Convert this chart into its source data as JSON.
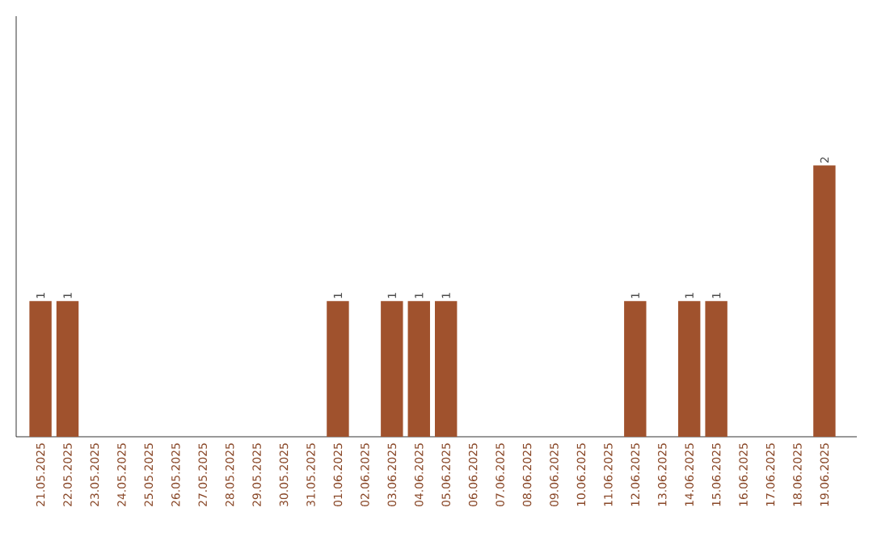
{
  "chart_data": {
    "type": "bar",
    "categories": [
      "21.05.2025",
      "22.05.2025",
      "23.05.2025",
      "24.05.2025",
      "25.05.2025",
      "26.05.2025",
      "27.05.2025",
      "28.05.2025",
      "29.05.2025",
      "30.05.2025",
      "31.05.2025",
      "01.06.2025",
      "02.06.2025",
      "03.06.2025",
      "04.06.2025",
      "05.06.2025",
      "06.06.2025",
      "07.06.2025",
      "08.06.2025",
      "09.06.2025",
      "10.06.2025",
      "11.06.2025",
      "12.06.2025",
      "13.06.2025",
      "14.06.2025",
      "15.06.2025",
      "16.06.2025",
      "17.06.2025",
      "18.06.2025",
      "19.06.2025"
    ],
    "values": [
      1,
      1,
      0,
      0,
      0,
      0,
      0,
      0,
      0,
      0,
      0,
      1,
      0,
      1,
      1,
      1,
      0,
      0,
      0,
      0,
      0,
      0,
      1,
      0,
      1,
      1,
      0,
      0,
      0,
      2
    ],
    "value_labels": [
      "1",
      "1",
      null,
      null,
      null,
      null,
      null,
      null,
      null,
      null,
      null,
      "1",
      null,
      "1",
      "1",
      "1",
      null,
      null,
      null,
      null,
      null,
      null,
      "1",
      null,
      "1",
      "1",
      null,
      null,
      null,
      "2"
    ],
    "color": "#a0522d",
    "ylim": [
      0,
      3.1
    ],
    "tick_labels": "x"
  }
}
